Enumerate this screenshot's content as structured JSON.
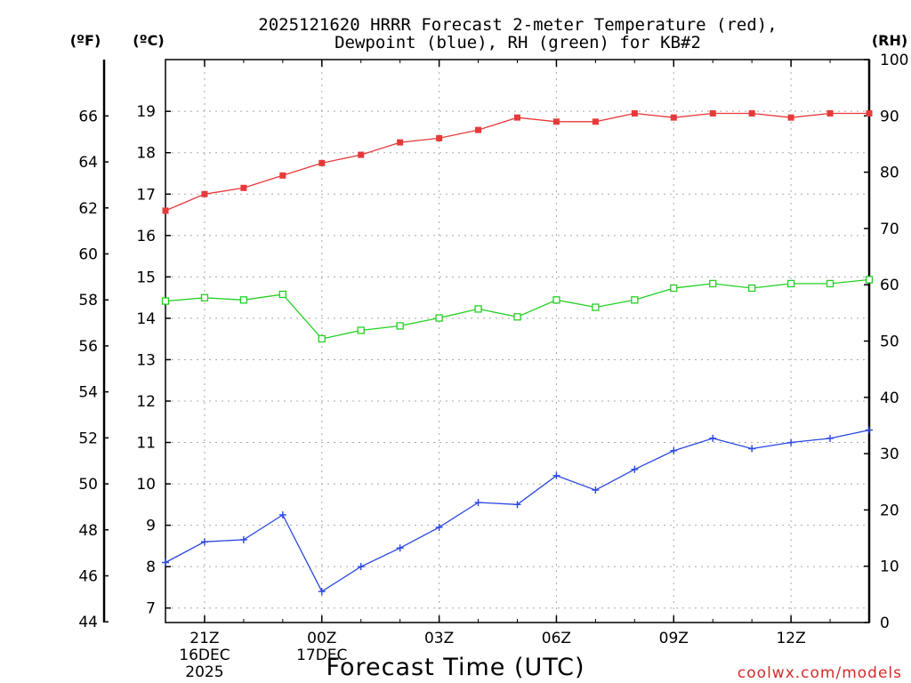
{
  "chart_data": {
    "type": "line",
    "title_line1": "2025121620 HRRR Forecast 2-meter Temperature (red),",
    "title_line2": "Dewpoint (blue), RH (green) for KB#2",
    "xlabel": "Forecast Time (UTC)",
    "credit": "coolwx.com/models",
    "units": {
      "fahrenheit": "(ºF)",
      "celsius": "(ºC)",
      "rh": "(RH)"
    },
    "x": [
      20,
      21,
      22,
      23,
      24,
      25,
      26,
      27,
      28,
      29,
      30,
      31,
      32,
      33,
      34,
      35,
      36,
      37,
      38
    ],
    "x_ticks": [
      {
        "x": 21,
        "label": "21Z",
        "date": "16DEC",
        "year": "2025"
      },
      {
        "x": 24,
        "label": "00Z",
        "date": "17DEC",
        "year": ""
      },
      {
        "x": 27,
        "label": "03Z",
        "date": "",
        "year": ""
      },
      {
        "x": 30,
        "label": "06Z",
        "date": "",
        "year": ""
      },
      {
        "x": 33,
        "label": "09Z",
        "date": "",
        "year": ""
      },
      {
        "x": 36,
        "label": "12Z",
        "date": "",
        "year": ""
      }
    ],
    "xlim": [
      20,
      38
    ],
    "celsius_axis": {
      "ylim": [
        6.65,
        20.25
      ],
      "ticks": [
        7,
        8,
        9,
        10,
        11,
        12,
        13,
        14,
        15,
        16,
        17,
        18,
        19
      ]
    },
    "fahrenheit_axis": {
      "ticks": [
        44,
        46,
        48,
        50,
        52,
        54,
        56,
        58,
        60,
        62,
        64,
        66
      ]
    },
    "rh_axis": {
      "ylim": [
        0,
        100
      ],
      "ticks": [
        0,
        10,
        20,
        30,
        40,
        50,
        60,
        70,
        80,
        90,
        100
      ]
    },
    "series": [
      {
        "name": "Temperature",
        "color": "#e8393a",
        "axis": "celsius",
        "marker": "filled-square",
        "values": [
          16.6,
          17.0,
          17.15,
          17.45,
          17.75,
          17.95,
          18.25,
          18.35,
          18.55,
          18.85,
          18.75,
          18.75,
          18.95,
          18.85,
          18.95,
          18.95,
          18.85,
          18.95,
          18.95
        ]
      },
      {
        "name": "Dewpoint",
        "color": "#2846e0",
        "axis": "celsius",
        "marker": "plus",
        "values": [
          8.1,
          8.6,
          8.65,
          9.25,
          7.4,
          8.0,
          8.45,
          8.95,
          9.55,
          9.5,
          10.2,
          9.85,
          10.35,
          10.8,
          11.1,
          10.85,
          11.0,
          11.1,
          11.3
        ]
      },
      {
        "name": "RH",
        "color": "#22d022",
        "axis": "rh",
        "marker": "open-square",
        "values": [
          57.1,
          57.7,
          57.3,
          58.3,
          50.4,
          51.9,
          52.7,
          54.1,
          55.7,
          54.3,
          57.3,
          56.0,
          57.3,
          59.4,
          60.2,
          59.4,
          60.2,
          60.2,
          60.9
        ]
      }
    ]
  }
}
